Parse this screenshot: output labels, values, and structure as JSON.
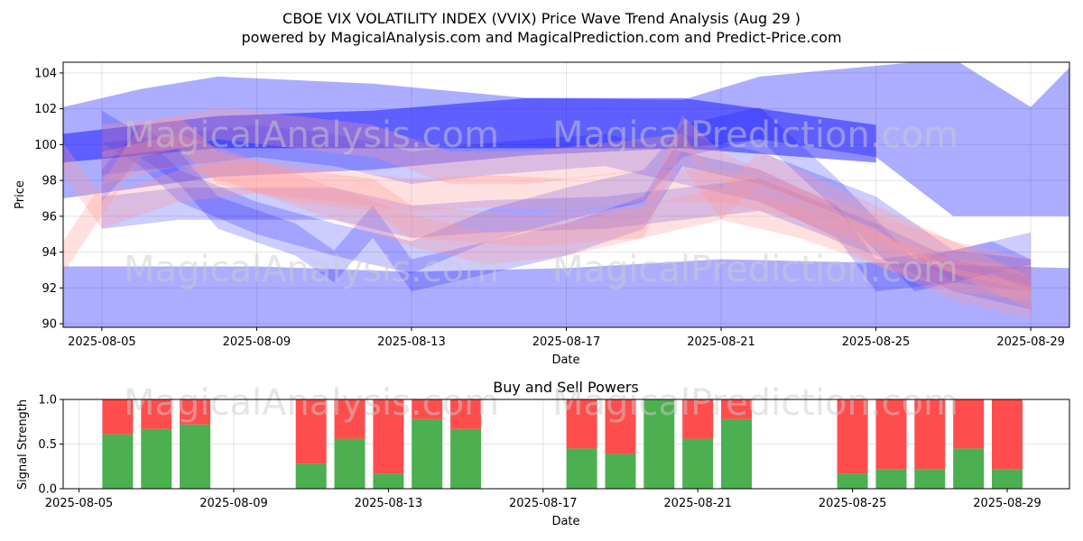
{
  "header": {
    "title_line1": "CBOE VIX VOLATILITY INDEX (VVIX) Price Wave Trend Analysis (Aug 29 )",
    "title_line2": "powered by MagicalAnalysis.com and MagicalPrediction.com and Predict-Price.com"
  },
  "watermarks": [
    "MagicalAnalysis.com",
    "MagicalPrediction.com"
  ],
  "colors": {
    "blue_band": "#0000ff",
    "red_band": "#ff9999",
    "buy": "#4caf50",
    "sell": "#ff4d4d"
  },
  "chart_data": [
    {
      "type": "area",
      "xlabel": "Date",
      "ylabel": "Price",
      "xlim": [
        "2025-08-04",
        "2025-08-30"
      ],
      "ylim": [
        89.8,
        104.6
      ],
      "x_ticks": [
        "2025-08-05",
        "2025-08-09",
        "2025-08-13",
        "2025-08-17",
        "2025-08-21",
        "2025-08-25",
        "2025-08-29"
      ],
      "y_ticks": [
        90,
        92,
        94,
        96,
        98,
        100,
        102,
        104
      ],
      "grid": true,
      "bands": [
        {
          "color": "blue",
          "opacity": 0.32,
          "x": [
            "2025-08-04",
            "2025-08-06",
            "2025-08-08",
            "2025-08-12",
            "2025-08-16",
            "2025-08-20",
            "2025-08-22",
            "2025-08-25",
            "2025-08-27",
            "2025-08-29",
            "2025-08-30"
          ],
          "upper": [
            102.1,
            103.1,
            103.8,
            103.4,
            102.6,
            102.5,
            103.8,
            104.4,
            104.8,
            102.1,
            104.3
          ],
          "lower": [
            97.0,
            97.6,
            98.2,
            98.6,
            99.4,
            99.8,
            100.3,
            99.3,
            96.0,
            96.0,
            96.0
          ]
        },
        {
          "color": "blue",
          "opacity": 0.32,
          "x": [
            "2025-08-04",
            "2025-08-09",
            "2025-08-13",
            "2025-08-17",
            "2025-08-21",
            "2025-08-25",
            "2025-08-30"
          ],
          "upper": [
            93.2,
            93.2,
            92.9,
            93.1,
            93.6,
            93.4,
            93.1
          ],
          "lower": [
            89.8,
            89.8,
            89.8,
            89.8,
            89.8,
            89.8,
            89.8
          ]
        },
        {
          "color": "blue",
          "opacity": 0.45,
          "x": [
            "2025-08-04",
            "2025-08-08",
            "2025-08-12",
            "2025-08-16",
            "2025-08-20",
            "2025-08-25"
          ],
          "upper": [
            100.6,
            101.6,
            101.9,
            102.6,
            102.6,
            101.1
          ],
          "lower": [
            99.0,
            99.8,
            99.8,
            99.8,
            99.8,
            99.0
          ]
        },
        {
          "color": "blue",
          "opacity": 0.2,
          "x": [
            "2025-08-05",
            "2025-08-06",
            "2025-08-07",
            "2025-08-09",
            "2025-08-11",
            "2025-08-13",
            "2025-08-15",
            "2025-08-17",
            "2025-08-19",
            "2025-08-20",
            "2025-08-22",
            "2025-08-24",
            "2025-08-26",
            "2025-08-28",
            "2025-08-29"
          ],
          "upper": [
            101.9,
            100.6,
            98.6,
            96.8,
            95.6,
            94.6,
            96.4,
            97.6,
            98.6,
            101.1,
            102.1,
            98.1,
            93.6,
            94.6,
            93.6
          ],
          "lower": [
            100.1,
            98.8,
            96.8,
            95.0,
            93.8,
            92.8,
            94.6,
            95.8,
            96.8,
            99.3,
            100.3,
            96.3,
            91.8,
            92.8,
            91.8
          ]
        },
        {
          "color": "blue",
          "opacity": 0.2,
          "x": [
            "2025-08-05",
            "2025-08-06",
            "2025-08-07",
            "2025-08-08",
            "2025-08-10",
            "2025-08-11",
            "2025-08-12",
            "2025-08-13",
            "2025-08-15",
            "2025-08-17",
            "2025-08-19",
            "2025-08-20",
            "2025-08-22",
            "2025-08-25",
            "2025-08-27",
            "2025-08-29"
          ],
          "upper": [
            98.6,
            101.1,
            99.6,
            97.1,
            95.6,
            94.1,
            96.6,
            93.6,
            94.6,
            95.6,
            97.1,
            100.6,
            99.6,
            97.1,
            94.1,
            95.1
          ],
          "lower": [
            96.8,
            99.3,
            97.8,
            95.3,
            93.8,
            92.3,
            94.8,
            91.8,
            92.8,
            93.8,
            95.3,
            98.8,
            97.8,
            95.3,
            92.3,
            93.3
          ]
        },
        {
          "color": "blue",
          "opacity": 0.2,
          "x": [
            "2025-08-05",
            "2025-08-07",
            "2025-08-09",
            "2025-08-11",
            "2025-08-13",
            "2025-08-15",
            "2025-08-18",
            "2025-08-20",
            "2025-08-22",
            "2025-08-24",
            "2025-08-25",
            "2025-08-27",
            "2025-08-29"
          ],
          "upper": [
            100.1,
            100.6,
            101.1,
            100.6,
            99.6,
            100.1,
            100.6,
            99.6,
            98.6,
            96.6,
            93.6,
            94.1,
            93.6
          ],
          "lower": [
            98.3,
            98.8,
            99.3,
            98.8,
            97.8,
            98.3,
            98.8,
            97.8,
            96.8,
            94.8,
            91.8,
            92.3,
            91.8
          ]
        },
        {
          "color": "blue",
          "opacity": 0.2,
          "x": [
            "2025-08-05",
            "2025-08-07",
            "2025-08-09",
            "2025-08-11",
            "2025-08-13",
            "2025-08-15",
            "2025-08-18",
            "2025-08-20",
            "2025-08-22",
            "2025-08-25",
            "2025-08-27",
            "2025-08-29"
          ],
          "upper": [
            97.1,
            97.6,
            97.6,
            97.6,
            96.6,
            96.9,
            97.1,
            97.6,
            98.1,
            95.6,
            93.6,
            92.6
          ],
          "lower": [
            95.3,
            95.8,
            95.8,
            95.8,
            94.8,
            95.1,
            95.3,
            95.8,
            96.3,
            93.8,
            91.8,
            90.8
          ]
        },
        {
          "color": "red",
          "opacity": 0.3,
          "x": [
            "2025-08-05",
            "2025-08-07",
            "2025-08-08",
            "2025-08-10",
            "2025-08-12",
            "2025-08-13",
            "2025-08-16",
            "2025-08-19",
            "2025-08-20",
            "2025-08-21",
            "2025-08-23",
            "2025-08-25",
            "2025-08-27",
            "2025-08-29"
          ],
          "upper": [
            101.1,
            101.6,
            99.6,
            98.6,
            98.1,
            96.6,
            96.1,
            96.6,
            101.6,
            99.6,
            97.6,
            95.1,
            93.6,
            93.1
          ],
          "lower": [
            99.3,
            99.8,
            97.8,
            96.8,
            96.3,
            94.8,
            94.3,
            94.8,
            99.8,
            97.8,
            95.8,
            93.3,
            91.8,
            91.3
          ]
        },
        {
          "color": "red",
          "opacity": 0.3,
          "x": [
            "2025-08-04",
            "2025-08-05",
            "2025-08-07",
            "2025-08-09",
            "2025-08-11",
            "2025-08-13",
            "2025-08-15",
            "2025-08-17",
            "2025-08-19",
            "2025-08-21",
            "2025-08-23",
            "2025-08-25",
            "2025-08-27",
            "2025-08-29"
          ],
          "upper": [
            100.1,
            97.1,
            98.6,
            99.1,
            98.6,
            98.1,
            98.3,
            98.1,
            98.6,
            98.6,
            97.6,
            96.1,
            94.6,
            93.6
          ],
          "lower": [
            98.3,
            95.3,
            96.8,
            97.3,
            96.8,
            96.3,
            96.5,
            96.3,
            96.8,
            96.8,
            95.8,
            94.3,
            92.8,
            91.8
          ]
        },
        {
          "color": "red",
          "opacity": 0.3,
          "x": [
            "2025-08-04",
            "2025-08-06",
            "2025-08-08",
            "2025-08-10",
            "2025-08-12",
            "2025-08-14",
            "2025-08-16",
            "2025-08-18",
            "2025-08-20",
            "2025-08-21",
            "2025-08-22",
            "2025-08-24",
            "2025-08-26",
            "2025-08-29"
          ],
          "upper": [
            94.6,
            101.1,
            102.1,
            101.6,
            101.1,
            99.6,
            99.6,
            100.1,
            100.6,
            97.6,
            99.6,
            97.6,
            95.6,
            92.6
          ],
          "lower": [
            92.8,
            99.3,
            100.3,
            99.8,
            99.3,
            97.8,
            97.8,
            98.3,
            98.8,
            95.8,
            97.8,
            95.8,
            93.8,
            90.8
          ]
        },
        {
          "color": "red",
          "opacity": 0.3,
          "x": [
            "2025-08-05",
            "2025-08-07",
            "2025-08-09",
            "2025-08-11",
            "2025-08-13",
            "2025-08-15",
            "2025-08-17",
            "2025-08-19",
            "2025-08-21",
            "2025-08-23",
            "2025-08-25",
            "2025-08-27",
            "2025-08-29"
          ],
          "upper": [
            99.6,
            100.6,
            99.1,
            97.6,
            96.1,
            95.1,
            95.6,
            96.6,
            97.6,
            96.6,
            95.1,
            93.1,
            92.1
          ],
          "lower": [
            97.8,
            98.8,
            97.3,
            95.8,
            94.3,
            93.3,
            93.8,
            94.8,
            95.8,
            94.8,
            93.3,
            91.3,
            90.3
          ]
        }
      ]
    },
    {
      "type": "bar",
      "title": "Buy and Sell Powers",
      "xlabel": "Date",
      "ylabel": "Signal Strength",
      "xlim": [
        "2025-08-04",
        "2025-08-30"
      ],
      "ylim": [
        0,
        1
      ],
      "x_ticks": [
        "2025-08-05",
        "2025-08-09",
        "2025-08-13",
        "2025-08-17",
        "2025-08-21",
        "2025-08-25",
        "2025-08-29"
      ],
      "y_ticks": [
        "0.0",
        "0.5",
        "1.0"
      ],
      "grid": true,
      "categories": [
        "2025-08-06",
        "2025-08-07",
        "2025-08-08",
        "2025-08-11",
        "2025-08-12",
        "2025-08-13",
        "2025-08-14",
        "2025-08-15",
        "2025-08-18",
        "2025-08-19",
        "2025-08-20",
        "2025-08-21",
        "2025-08-22",
        "2025-08-25",
        "2025-08-26",
        "2025-08-27",
        "2025-08-28",
        "2025-08-29"
      ],
      "series": [
        {
          "name": "buy",
          "values": [
            0.61,
            0.67,
            0.72,
            0.28,
            0.56,
            0.17,
            0.78,
            0.67,
            0.45,
            0.39,
            1.0,
            0.56,
            0.78,
            0.17,
            0.22,
            0.22,
            0.45,
            0.22
          ]
        },
        {
          "name": "sell",
          "values": [
            0.39,
            0.33,
            0.28,
            0.72,
            0.44,
            0.83,
            0.22,
            0.33,
            0.55,
            0.61,
            0.0,
            0.44,
            0.22,
            0.83,
            0.78,
            0.78,
            0.55,
            0.78
          ]
        }
      ]
    }
  ]
}
